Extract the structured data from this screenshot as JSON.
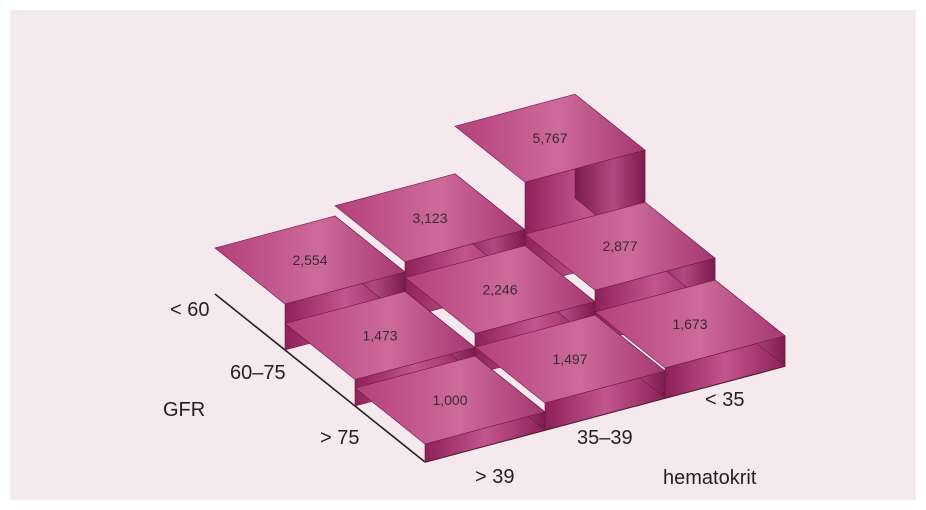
{
  "chart_data": {
    "type": "3d-bar",
    "title": "",
    "ylabel": "GFR",
    "xlabel": "hematokrit",
    "gfr_categories": [
      "< 60",
      "60–75",
      "> 75"
    ],
    "hematokrit_categories": [
      "< 35",
      "35–39",
      "> 39"
    ],
    "cells": [
      {
        "gfr": "< 60",
        "hematokrit": "< 35",
        "value": 5.767,
        "label": "5,767"
      },
      {
        "gfr": "< 60",
        "hematokrit": "35–39",
        "value": 3.123,
        "label": "3,123"
      },
      {
        "gfr": "< 60",
        "hematokrit": "> 39",
        "value": 2.554,
        "label": "2,554"
      },
      {
        "gfr": "60–75",
        "hematokrit": "< 35",
        "value": 2.877,
        "label": "2,877"
      },
      {
        "gfr": "60–75",
        "hematokrit": "35–39",
        "value": 2.246,
        "label": "2,246"
      },
      {
        "gfr": "60–75",
        "hematokrit": "> 39",
        "value": 1.473,
        "label": "1,473"
      },
      {
        "gfr": "> 75",
        "hematokrit": "< 35",
        "value": 1.673,
        "label": "1,673"
      },
      {
        "gfr": "> 75",
        "hematokrit": "35–39",
        "value": 1.497,
        "label": "1,497"
      },
      {
        "gfr": "> 75",
        "hematokrit": "> 39",
        "value": 1.0,
        "label": "1,000"
      }
    ],
    "colors": {
      "background": "#f5e9ee",
      "top": "#b8457e",
      "front": "#9e2c66",
      "side": "#7c1c4f",
      "axis": "#231f20",
      "text": "#231f20",
      "value_text": "#3a2a33"
    }
  }
}
